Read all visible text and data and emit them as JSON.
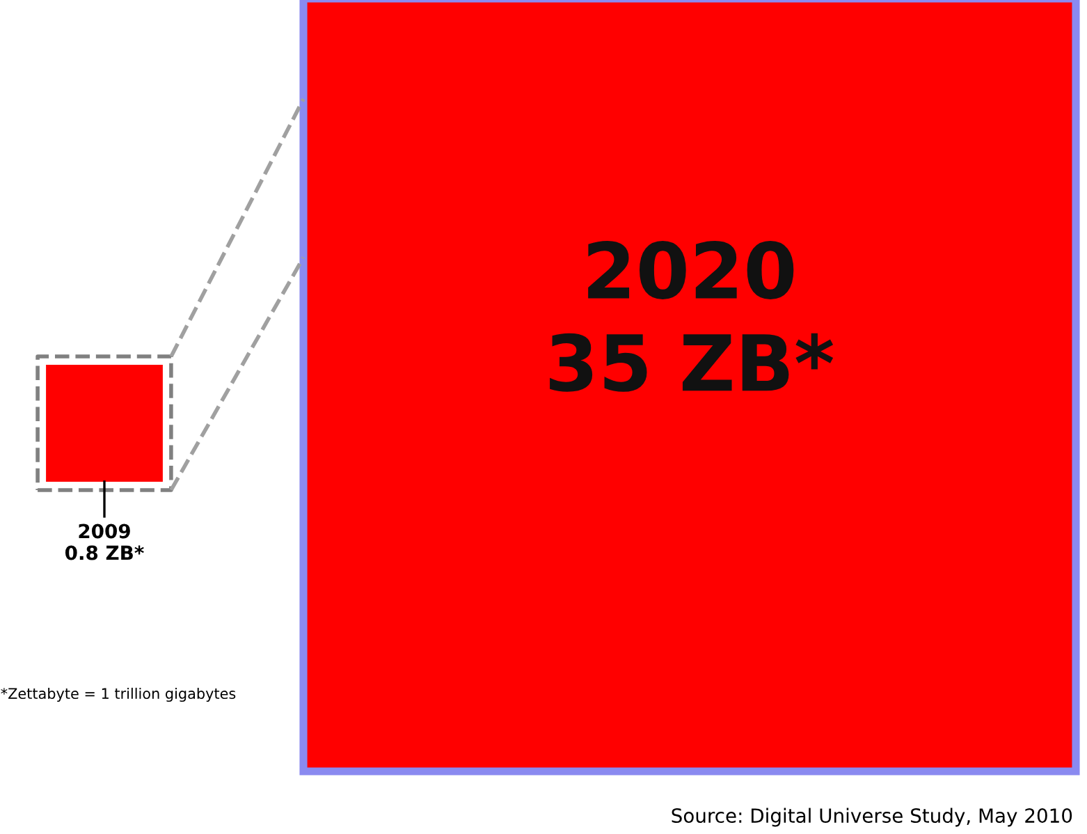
{
  "chart_data": {
    "type": "other",
    "categories": [
      "2009",
      "2020"
    ],
    "values": [
      0.8,
      35
    ],
    "value_labels": [
      "0.8 ZB*",
      "35 ZB*"
    ],
    "colors": [
      "#ff0000",
      "#ff0000"
    ],
    "annotations": [
      "*Zettabyte = 1 trillion gigabytes",
      "Source: Digital Universe Study, May 2010"
    ]
  }
}
